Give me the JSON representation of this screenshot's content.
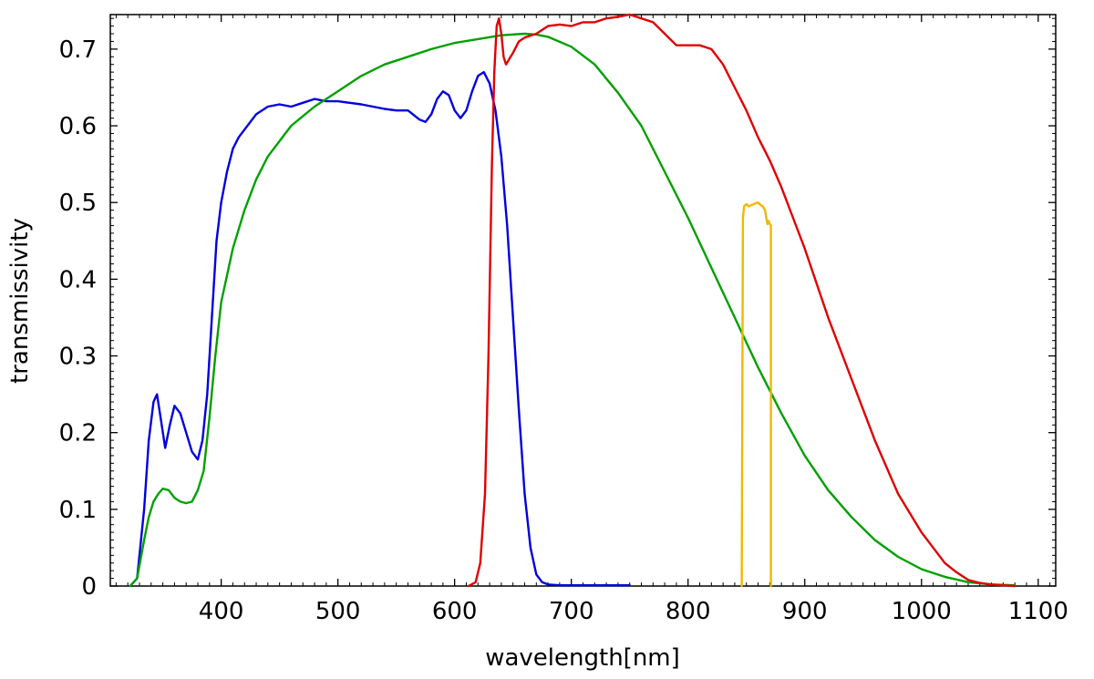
{
  "chart_data": {
    "type": "line",
    "title": "",
    "xlabel": "wavelength[nm]",
    "ylabel": "transmissivity",
    "xlim": [
      305,
      1115
    ],
    "ylim": [
      0,
      0.745
    ],
    "xticks": [
      400,
      500,
      600,
      700,
      800,
      900,
      1000,
      1100
    ],
    "yticks": [
      0,
      0.1,
      0.2,
      0.3,
      0.4,
      0.5,
      0.6,
      0.7
    ],
    "xtick_labels": [
      "400",
      "500",
      "600",
      "700",
      "800",
      "900",
      "1000",
      "1100"
    ],
    "ytick_labels": [
      "0",
      "0.1",
      "0.2",
      "0.3",
      "0.4",
      "0.5",
      "0.6",
      "0.7"
    ],
    "grid": false,
    "series": [
      {
        "color": "#0000dd",
        "x": [
          322,
          328,
          334,
          338,
          342,
          345,
          348,
          352,
          356,
          360,
          365,
          370,
          375,
          380,
          384,
          388,
          392,
          396,
          400,
          405,
          410,
          415,
          420,
          430,
          440,
          450,
          460,
          470,
          480,
          490,
          500,
          510,
          520,
          530,
          540,
          550,
          560,
          570,
          575,
          580,
          585,
          590,
          595,
          600,
          605,
          610,
          615,
          620,
          625,
          630,
          635,
          640,
          645,
          650,
          655,
          660,
          665,
          670,
          675,
          680,
          690,
          700,
          720,
          750
        ],
        "y": [
          0,
          0.01,
          0.1,
          0.19,
          0.24,
          0.25,
          0.22,
          0.18,
          0.21,
          0.235,
          0.225,
          0.2,
          0.175,
          0.165,
          0.19,
          0.25,
          0.35,
          0.45,
          0.5,
          0.54,
          0.57,
          0.585,
          0.595,
          0.615,
          0.625,
          0.628,
          0.625,
          0.63,
          0.635,
          0.632,
          0.632,
          0.63,
          0.628,
          0.625,
          0.622,
          0.62,
          0.62,
          0.608,
          0.605,
          0.615,
          0.635,
          0.645,
          0.64,
          0.62,
          0.61,
          0.62,
          0.645,
          0.665,
          0.67,
          0.655,
          0.62,
          0.56,
          0.47,
          0.35,
          0.23,
          0.12,
          0.05,
          0.015,
          0.005,
          0.002,
          0.001,
          0.001,
          0.001,
          0.001
        ]
      },
      {
        "color": "#00a000",
        "x": [
          322,
          328,
          334,
          338,
          342,
          346,
          350,
          355,
          360,
          365,
          370,
          375,
          380,
          385,
          390,
          395,
          400,
          410,
          420,
          430,
          440,
          450,
          460,
          480,
          500,
          520,
          540,
          560,
          580,
          600,
          620,
          640,
          660,
          670,
          680,
          700,
          720,
          740,
          760,
          780,
          800,
          820,
          840,
          860,
          880,
          900,
          920,
          940,
          960,
          980,
          1000,
          1020,
          1040,
          1060,
          1080
        ],
        "y": [
          0,
          0.01,
          0.06,
          0.09,
          0.11,
          0.12,
          0.127,
          0.125,
          0.115,
          0.11,
          0.108,
          0.11,
          0.125,
          0.15,
          0.22,
          0.3,
          0.37,
          0.44,
          0.49,
          0.53,
          0.56,
          0.58,
          0.6,
          0.625,
          0.645,
          0.665,
          0.68,
          0.69,
          0.7,
          0.708,
          0.713,
          0.718,
          0.72,
          0.719,
          0.716,
          0.703,
          0.68,
          0.643,
          0.6,
          0.54,
          0.48,
          0.415,
          0.35,
          0.285,
          0.225,
          0.17,
          0.125,
          0.09,
          0.06,
          0.038,
          0.022,
          0.012,
          0.005,
          0.002,
          0.001
        ]
      },
      {
        "color": "#e00000",
        "x": [
          612,
          618,
          622,
          626,
          629,
          632,
          634,
          636,
          638,
          640,
          642,
          644,
          646,
          648,
          650,
          655,
          660,
          670,
          680,
          690,
          700,
          710,
          720,
          730,
          740,
          750,
          760,
          770,
          780,
          790,
          800,
          810,
          820,
          830,
          840,
          850,
          860,
          870,
          880,
          890,
          900,
          920,
          940,
          960,
          980,
          1000,
          1020,
          1030,
          1040,
          1050,
          1060,
          1070,
          1080
        ],
        "y": [
          0,
          0.005,
          0.03,
          0.12,
          0.3,
          0.55,
          0.67,
          0.73,
          0.74,
          0.72,
          0.69,
          0.68,
          0.685,
          0.69,
          0.695,
          0.71,
          0.715,
          0.72,
          0.73,
          0.732,
          0.73,
          0.735,
          0.735,
          0.74,
          0.742,
          0.745,
          0.74,
          0.735,
          0.72,
          0.705,
          0.705,
          0.705,
          0.7,
          0.68,
          0.65,
          0.62,
          0.585,
          0.555,
          0.52,
          0.48,
          0.44,
          0.35,
          0.27,
          0.19,
          0.12,
          0.07,
          0.03,
          0.018,
          0.008,
          0.004,
          0.002,
          0.001,
          0.0
        ]
      },
      {
        "color": "#f0b800",
        "x": [
          846,
          847,
          848,
          850,
          852,
          855,
          858,
          860,
          862,
          864,
          866,
          867,
          868,
          869,
          870,
          871,
          871
        ],
        "y": [
          0,
          0.48,
          0.495,
          0.498,
          0.495,
          0.497,
          0.499,
          0.5,
          0.497,
          0.495,
          0.49,
          0.48,
          0.472,
          0.476,
          0.472,
          0.47,
          0
        ]
      }
    ]
  }
}
